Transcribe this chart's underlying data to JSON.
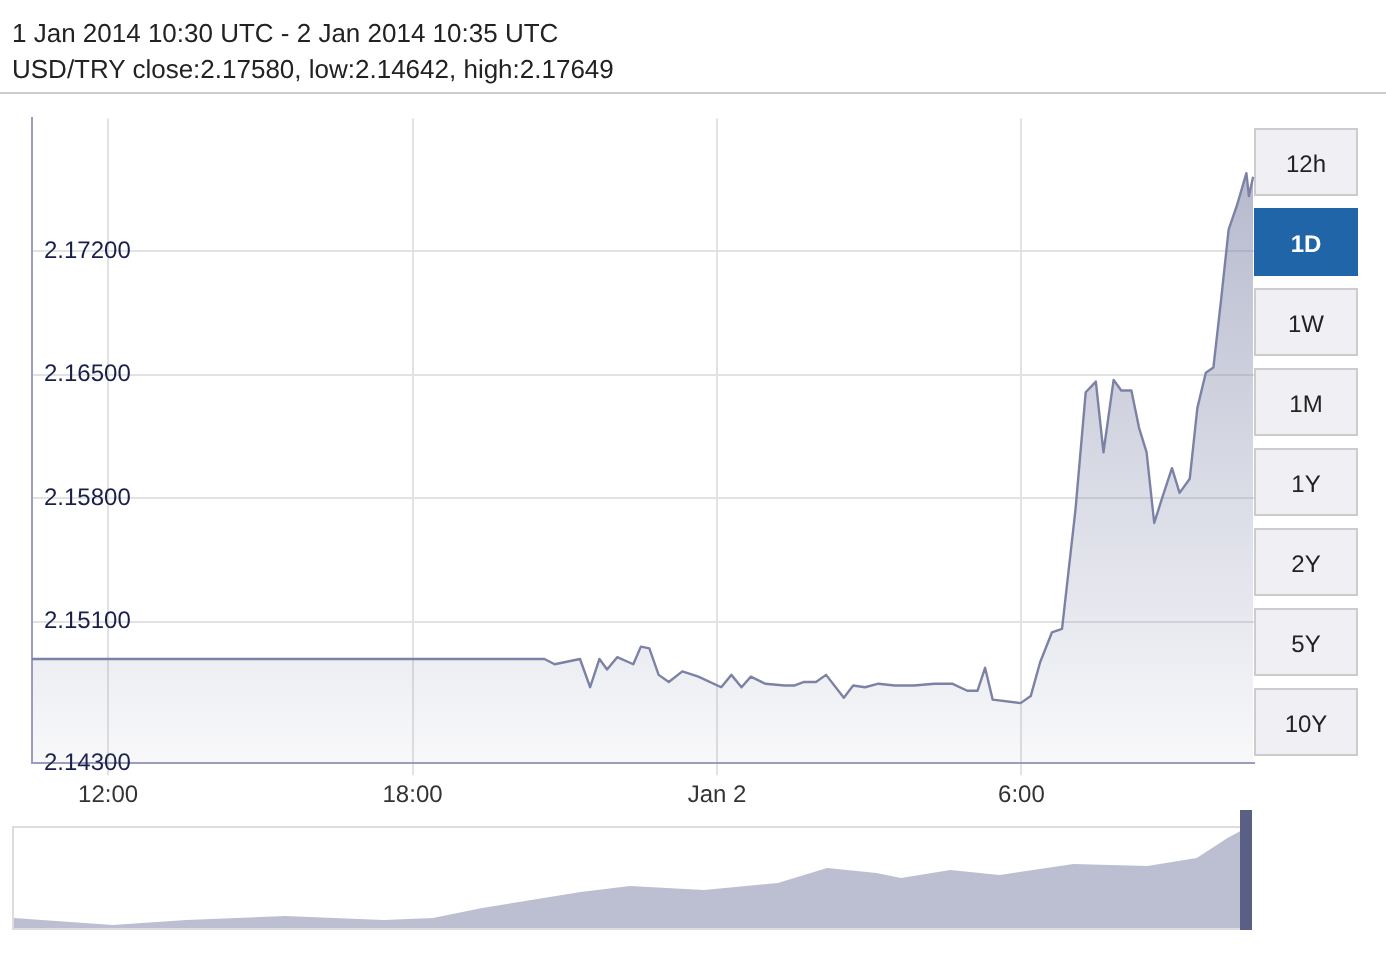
{
  "chart_data": {
    "type": "area",
    "title": "1 Jan 2014 10:30 UTC - 2 Jan 2014 10:35 UTC",
    "subtitle": "USD/TRY close:2.17580, low:2.14642, high:2.17649",
    "annotations": [
      "12h",
      "1D",
      "1W",
      "1M",
      "1Y",
      "2Y",
      "5Y",
      "10Y"
    ],
    "series": [
      {
        "color": "#7c82a6",
        "x": [
          "2014-01-01T10:30",
          "2014-01-01T20:36",
          "2014-01-01T20:48",
          "2014-01-01T21:18",
          "2014-01-01T21:30",
          "2014-01-01T21:41",
          "2014-01-01T21:50",
          "2014-01-01T22:02",
          "2014-01-01T22:21",
          "2014-01-01T22:30",
          "2014-01-01T22:40",
          "2014-01-01T22:51",
          "2014-01-01T23:03",
          "2014-01-01T23:19",
          "2014-01-01T23:38",
          "2014-01-02T00:05",
          "2014-01-02T00:17",
          "2014-01-02T00:29",
          "2014-01-02T00:40",
          "2014-01-02T00:57",
          "2014-01-02T01:20",
          "2014-01-02T01:32",
          "2014-01-02T01:43",
          "2014-01-02T01:57",
          "2014-01-02T02:09",
          "2014-01-02T02:30",
          "2014-01-02T02:41",
          "2014-01-02T02:55",
          "2014-01-02T03:11",
          "2014-01-02T03:30",
          "2014-01-02T03:53",
          "2014-01-02T04:17",
          "2014-01-02T04:38",
          "2014-01-02T04:56",
          "2014-01-02T05:08",
          "2014-01-02T05:17",
          "2014-01-02T05:26",
          "2014-01-02T05:59",
          "2014-01-02T06:11",
          "2014-01-02T06:22",
          "2014-01-02T06:36",
          "2014-01-02T06:48",
          "2014-01-02T07:04",
          "2014-01-02T07:16",
          "2014-01-02T07:28",
          "2014-01-02T07:37",
          "2014-01-02T07:49",
          "2014-01-02T07:58",
          "2014-01-02T08:10",
          "2014-01-02T08:19",
          "2014-01-02T08:28",
          "2014-01-02T08:37",
          "2014-01-02T08:47",
          "2014-01-02T08:58",
          "2014-01-02T09:07",
          "2014-01-02T09:19",
          "2014-01-02T09:28",
          "2014-01-02T09:38",
          "2014-01-02T09:47",
          "2014-01-02T09:56",
          "2014-01-02T10:05",
          "2014-01-02T10:15",
          "2014-01-02T10:26",
          "2014-01-02T10:29",
          "2014-01-02T10:34"
        ],
        "values": [
          2.1489,
          2.1489,
          2.1486,
          2.1489,
          2.1473,
          2.1489,
          2.1483,
          2.149,
          2.1486,
          2.1496,
          2.1495,
          2.148,
          2.1476,
          2.1482,
          2.1479,
          2.1473,
          2.148,
          2.1473,
          2.1479,
          2.1475,
          2.1474,
          2.1474,
          2.1476,
          2.1476,
          2.148,
          2.1467,
          2.1474,
          2.1473,
          2.1475,
          2.1474,
          2.1474,
          2.1475,
          2.1475,
          2.1471,
          2.1471,
          2.1484,
          2.1466,
          2.1464,
          2.1468,
          2.1487,
          2.1504,
          2.1506,
          2.1574,
          2.164,
          2.1646,
          2.1606,
          2.1647,
          2.1641,
          2.1641,
          2.162,
          2.1606,
          2.1566,
          2.1581,
          2.1597,
          2.1583,
          2.1591,
          2.1631,
          2.1651,
          2.1654,
          2.1692,
          2.1732,
          2.1746,
          2.1764,
          2.1751,
          2.1762
        ]
      }
    ],
    "xlim": [
      "2014-01-01T10:30",
      "2014-01-02T10:35"
    ],
    "xticks": [
      {
        "value": "2014-01-01T12:00",
        "label": "12:00"
      },
      {
        "value": "2014-01-01T18:00",
        "label": "18:00"
      },
      {
        "value": "2014-01-02T00:00",
        "label": "Jan 2"
      },
      {
        "value": "2014-01-02T06:00",
        "label": "6:00"
      }
    ],
    "ylim": [
      2.143,
      2.1795
    ],
    "yticks": [
      {
        "value": 2.143,
        "label": "2.14300"
      },
      {
        "value": 2.151,
        "label": "2.15100"
      },
      {
        "value": 2.158,
        "label": "2.15800"
      },
      {
        "value": 2.165,
        "label": "2.16500"
      },
      {
        "value": 2.172,
        "label": "2.17200"
      }
    ],
    "grid": true,
    "legend": false,
    "marker": "none",
    "line_style": "solid"
  }
}
